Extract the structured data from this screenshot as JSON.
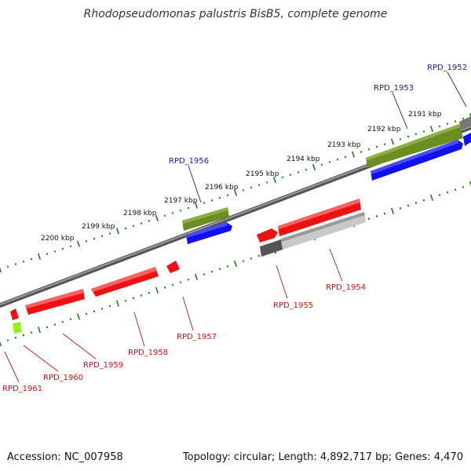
{
  "title": "Rhodopseudomonas palustris BisB5, complete genome",
  "footer": {
    "accession": "Accession: NC_007958",
    "summary": "Topology: circular; Length: 4,892,717 bp; Genes: 4,470"
  },
  "colors": {
    "forward_label": "#1a1aaa",
    "reverse_label": "#cc1111",
    "backbone": "#7a7a7a",
    "tick": "#1a7a1a",
    "gene_red": "#ee1111",
    "gene_blue": "#1111ee",
    "gene_olive": "#6b8e23",
    "gene_gray": "#555555",
    "gene_lightgray": "#c0c0c0",
    "gene_lime": "#99ee22"
  },
  "scale_labels": [
    "2191 kbp",
    "2192 kbp",
    "2193 kbp",
    "2194 kbp",
    "2195 kbp",
    "2196 kbp",
    "2197 kbp",
    "2198 kbp",
    "2199 kbp",
    "2200 kbp"
  ],
  "genes_forward": [
    "RPD_1952",
    "RPD_1953",
    "RPD_1956"
  ],
  "genes_reverse": [
    "RPD_1954",
    "RPD_1955",
    "RPD_1957",
    "RPD_1958",
    "RPD_1959",
    "RPD_1960",
    "RPD_1961"
  ]
}
